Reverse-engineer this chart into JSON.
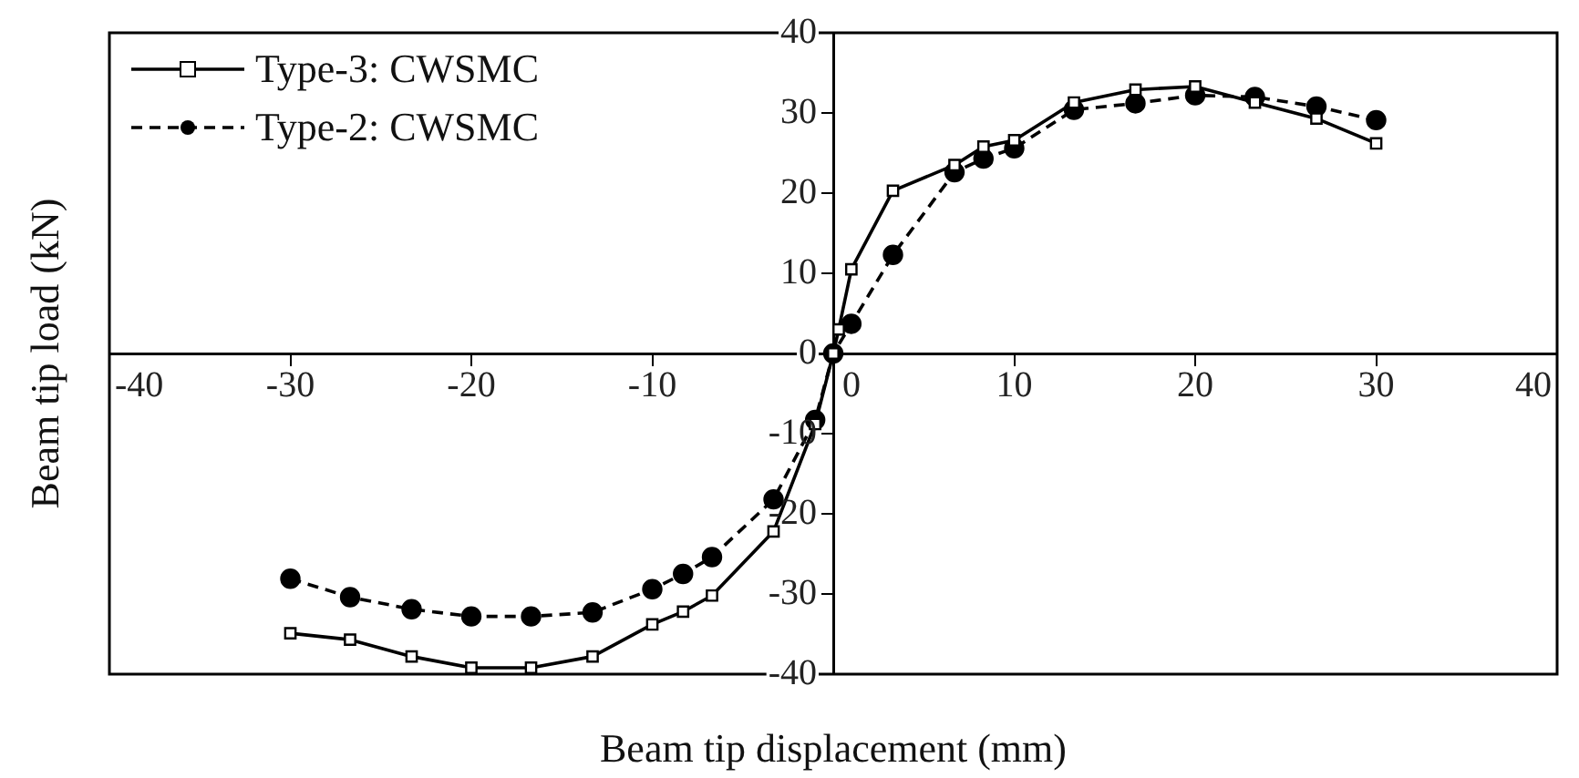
{
  "chart_data": {
    "type": "line",
    "xlabel": "Beam tip displacement (mm)",
    "ylabel": "Beam tip load (kN)",
    "xlim": [
      -40,
      40
    ],
    "xticks": [
      -40,
      -30,
      -20,
      -10,
      0,
      10,
      20,
      30,
      40
    ],
    "ylim": [
      -40,
      40
    ],
    "yticks": [
      -40,
      -30,
      -20,
      -10,
      0,
      10,
      20,
      30,
      40
    ],
    "legend": "top left",
    "series": [
      {
        "name": "Type-3: CWSMC",
        "color": "#000000",
        "marker": "square",
        "line_style": "solid",
        "x": [
          -30,
          -26.7,
          -23.3,
          -20,
          -16.7,
          -13.3,
          -10,
          -8.3,
          -6.7,
          -3.3,
          -1,
          0,
          0.3,
          1,
          3.3,
          6.7,
          8.3,
          10,
          13.3,
          16.7,
          20,
          23.3,
          26.7,
          30
        ],
        "values": [
          -34.9,
          -35.7,
          -37.8,
          -39.2,
          -39.2,
          -37.8,
          -33.8,
          -32.2,
          -30.2,
          -22.2,
          -8.8,
          0,
          3,
          10.5,
          20.3,
          23.5,
          25.8,
          26.6,
          31.3,
          32.9,
          33.3,
          31.3,
          29.3,
          26.2
        ]
      },
      {
        "name": "Type-2: CWSMC",
        "color": "#000000",
        "marker": "circle",
        "line_style": "dashed",
        "x": [
          -30,
          -26.7,
          -23.3,
          -20,
          -16.7,
          -13.3,
          -10,
          -8.3,
          -6.7,
          -3.3,
          -1,
          0,
          1,
          3.3,
          6.7,
          8.3,
          10,
          13.3,
          16.7,
          20,
          23.3,
          26.7,
          30
        ],
        "values": [
          -28.1,
          -30.4,
          -31.9,
          -32.8,
          -32.8,
          -32.3,
          -29.4,
          -27.5,
          -25.4,
          -18.2,
          -8.3,
          0,
          3.7,
          12.3,
          22.6,
          24.3,
          25.6,
          30.4,
          31.2,
          32.2,
          32,
          30.8,
          29.1
        ]
      }
    ]
  }
}
